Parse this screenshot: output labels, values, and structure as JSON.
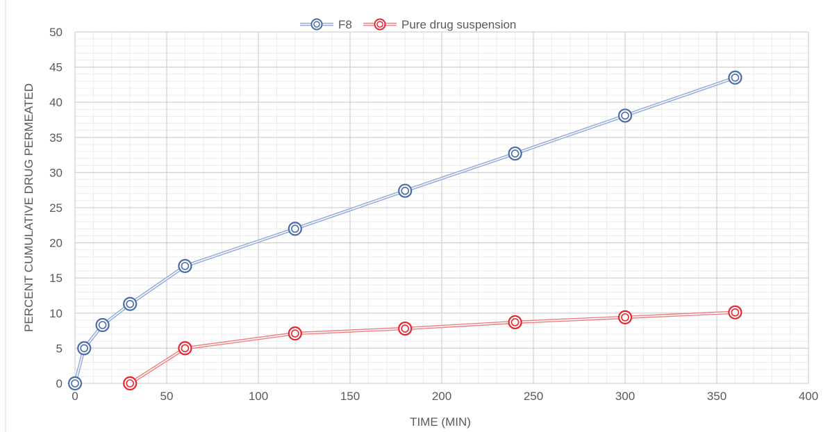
{
  "chart_data": {
    "type": "line",
    "title": "",
    "xlabel": "TIME (MIN)",
    "ylabel": "PERCENT CUMULATIVE DRUG PERMEATED",
    "xlim": [
      0,
      400
    ],
    "ylim": [
      0,
      50
    ],
    "x_ticks": [
      0,
      50,
      100,
      150,
      200,
      250,
      300,
      350,
      400
    ],
    "y_ticks": [
      0,
      5,
      10,
      15,
      20,
      25,
      30,
      35,
      40,
      45,
      50
    ],
    "grid": true,
    "legend_position": "top",
    "series": [
      {
        "name": "F8",
        "color": "#4a6ba8",
        "line_color": "#8faadc",
        "x": [
          0,
          5,
          15,
          30,
          60,
          120,
          180,
          240,
          300,
          360
        ],
        "y": [
          0,
          5.0,
          8.3,
          11.3,
          16.7,
          22.0,
          27.4,
          32.7,
          38.1,
          43.5
        ]
      },
      {
        "name": "Pure drug suspension",
        "color": "#e8252e",
        "line_color": "#f08080",
        "x": [
          30,
          60,
          120,
          180,
          240,
          300,
          360
        ],
        "y": [
          0,
          5.0,
          7.1,
          7.8,
          8.7,
          9.4,
          10.1
        ]
      }
    ]
  }
}
